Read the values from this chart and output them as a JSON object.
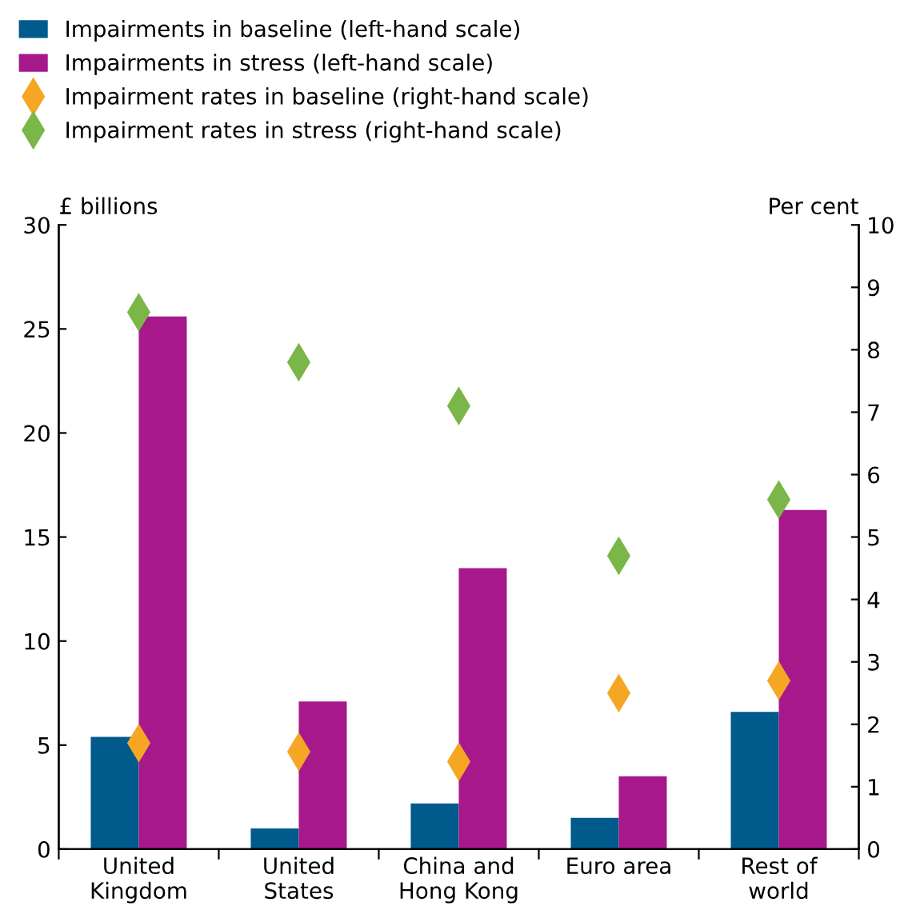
{
  "chart_data": {
    "type": "bar",
    "ylabel": "£ billions",
    "y2label": "Per cent",
    "categories": [
      "United\nKingdom",
      "United\nStates",
      "China and\nHong Kong",
      "Euro area",
      "Rest of\nworld"
    ],
    "series": [
      {
        "name": "Impairments in baseline (left-hand scale)",
        "color": "#005a8c",
        "values": [
          5.4,
          1.0,
          2.2,
          1.5,
          6.6
        ]
      },
      {
        "name": "Impairments in stress (left-hand scale)",
        "color": "#a7198b",
        "values": [
          25.6,
          7.1,
          13.5,
          3.5,
          16.3
        ]
      },
      {
        "name": "Impairment rates in baseline (right-hand scale)",
        "type": "scatter",
        "axis": "y2",
        "marker": "diamond",
        "color": "#f5a623",
        "values": [
          1.7,
          1.56,
          1.4,
          2.5,
          2.7
        ]
      },
      {
        "name": "Impairment rates in stress (right-hand scale)",
        "type": "scatter",
        "axis": "y2",
        "marker": "diamond",
        "color": "#7ab648",
        "values": [
          8.6,
          7.8,
          7.1,
          4.7,
          5.6
        ]
      }
    ],
    "ylim": [
      0,
      30
    ],
    "yticks": [
      0,
      5,
      10,
      15,
      20,
      25,
      30
    ],
    "y2lim": [
      0,
      10
    ],
    "y2ticks": [
      0,
      1,
      2,
      3,
      4,
      5,
      6,
      7,
      8,
      9,
      10
    ],
    "legend": "top",
    "grid": false
  }
}
